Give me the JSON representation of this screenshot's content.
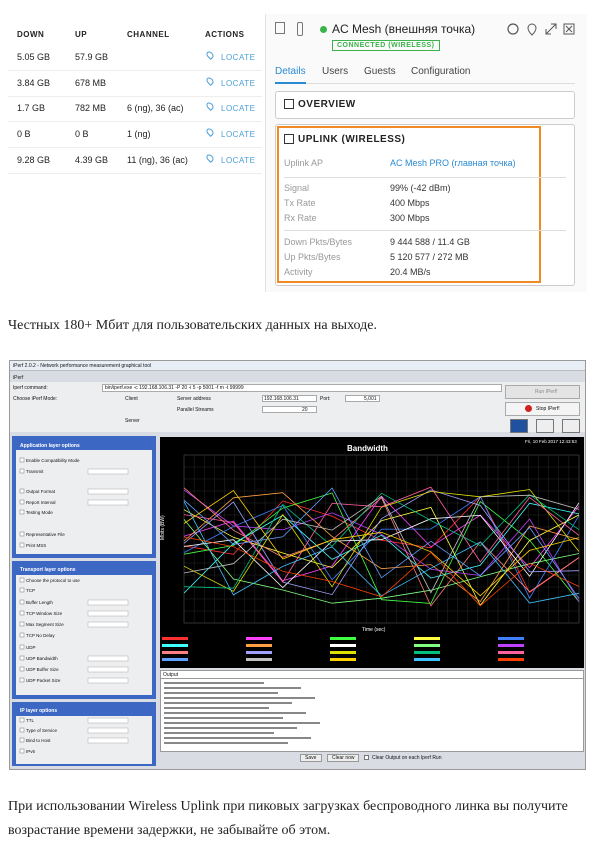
{
  "table": {
    "headers": [
      "DOWN",
      "UP",
      "CHANNEL",
      "ACTIONS"
    ],
    "rows": [
      [
        "5.05 GB",
        "57.9 GB",
        "",
        "LOCATE"
      ],
      [
        "3.84 GB",
        "678 MB",
        "",
        "LOCATE"
      ],
      [
        "1.7 GB",
        "782 MB",
        "6 (ng), 36 (ac)",
        "LOCATE"
      ],
      [
        "0 B",
        "0 B",
        "1 (ng)",
        "LOCATE"
      ],
      [
        "9.28 GB",
        "4.39 GB",
        "11 (ng), 36 (ac)",
        "LOCATE"
      ]
    ]
  },
  "panel": {
    "device_name": "AC Mesh (внешняя точка)",
    "status": "CONNECTED (WIRELESS)",
    "tabs": [
      "Details",
      "Users",
      "Guests",
      "Configuration"
    ],
    "sections": [
      "OVERVIEW",
      "UPLINK (WIRELESS)"
    ],
    "rows": [
      [
        "Uplink AP",
        "AC Mesh PRO (главная точка)"
      ],
      [
        "Signal",
        "99% (-42 dBm)"
      ],
      [
        "Tx Rate",
        "400 Mbps"
      ],
      [
        "Rx Rate",
        "300 Mbps"
      ],
      [
        "Down Pkts/Bytes",
        "9 444 588 / 11.4 GB"
      ],
      [
        "Up Pkts/Bytes",
        "5 120 577 / 272 MB"
      ],
      [
        "Activity",
        "20.4 MB/s"
      ]
    ]
  },
  "paragraphs": [
    "Честных 180+ Мбит для пользовательских данных на выходе.",
    "При использовании Wireless Uplink при пиковых загрузках беспроводного линка вы получите возрастание времени задержки, не забывайте об этом."
  ],
  "iperf": {
    "title": "iPerf 2.0.2 - Network performance measurement graphical tool",
    "menu": "iPerf",
    "command_label": "Iperf command:",
    "command": "bin/iperf.exe -c 192.168.106.31 -P 20 -i 5 -p 5001 -f m -t 99999",
    "mode_label": "Choose iPerf Mode:",
    "client": "Client",
    "server": "Server",
    "server_address_label": "Server address",
    "server_address": "192.168.106.31",
    "port_label": "Port:",
    "port": "5,001",
    "streams_label": "Parallel Streams",
    "streams": "20",
    "run": "Run IPerf!",
    "stop": "Stop IPerf!",
    "panels": [
      "Application layer options",
      "Transport layer options",
      "IP layer options"
    ],
    "options": [
      "Enable Compatibility Mode",
      "Transmit",
      "Output Format",
      "Report Interval",
      "Testing Mode",
      "Representative File",
      "Print MSS",
      "Choose the protocol to use",
      "TCP",
      "Buffer Length",
      "TCP Window Size",
      "Max Segment Size",
      "TCP No Delay",
      "UDP",
      "UDP Bandwidth",
      "UDP Buffer Size",
      "UDP Packet Size",
      "TTL",
      "Type of Service",
      "Bind to Host",
      "IPv6"
    ],
    "chart_title": "Bandwidth",
    "timestamp": "Fri, 10 Feb 2017 12:43:53",
    "x_label": "Time (sec)",
    "y_label": "Mbits (BW)",
    "output_label": "Output",
    "save": "Save",
    "clear_now": "Clear now",
    "clear_output": "Clear Output on each Iperf Run"
  }
}
